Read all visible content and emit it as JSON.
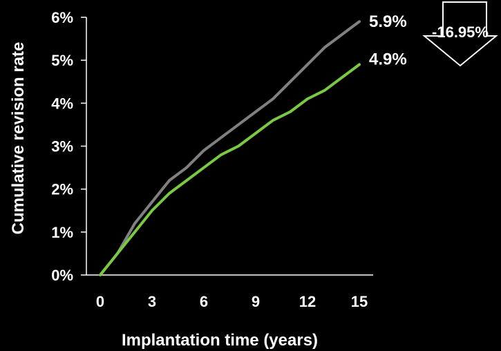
{
  "chart_data": {
    "type": "line",
    "xlabel": "Implantation time (years)",
    "ylabel": "Cumulative revision rate",
    "xlim": [
      0,
      15
    ],
    "ylim": [
      0,
      6
    ],
    "x_ticks": [
      "0",
      "3",
      "6",
      "9",
      "12",
      "15"
    ],
    "y_ticks": [
      "0%",
      "1%",
      "2%",
      "3%",
      "4%",
      "5%",
      "6%"
    ],
    "grid": false,
    "legend": "none",
    "series": [
      {
        "color": "#808080",
        "x": [
          0,
          1,
          2,
          3,
          4,
          5,
          6,
          7,
          8,
          9,
          10,
          11,
          12,
          13,
          14,
          15
        ],
        "y": [
          0,
          0.5,
          1.2,
          1.7,
          2.2,
          2.5,
          2.9,
          3.2,
          3.5,
          3.8,
          4.1,
          4.5,
          4.9,
          5.3,
          5.6,
          5.9
        ],
        "end_label": "5.9%"
      },
      {
        "color": "#7ac943",
        "x": [
          0,
          1,
          2,
          3,
          4,
          5,
          6,
          7,
          8,
          9,
          10,
          11,
          12,
          13,
          14,
          15
        ],
        "y": [
          0,
          0.5,
          1.0,
          1.5,
          1.9,
          2.2,
          2.5,
          2.8,
          3.0,
          3.3,
          3.6,
          3.8,
          4.1,
          4.3,
          4.6,
          4.9
        ],
        "end_label": "4.9%"
      }
    ],
    "callout": {
      "text": "-16.95%",
      "shape": "down-arrow",
      "fill": "#000000",
      "stroke": "#ffffff"
    }
  }
}
